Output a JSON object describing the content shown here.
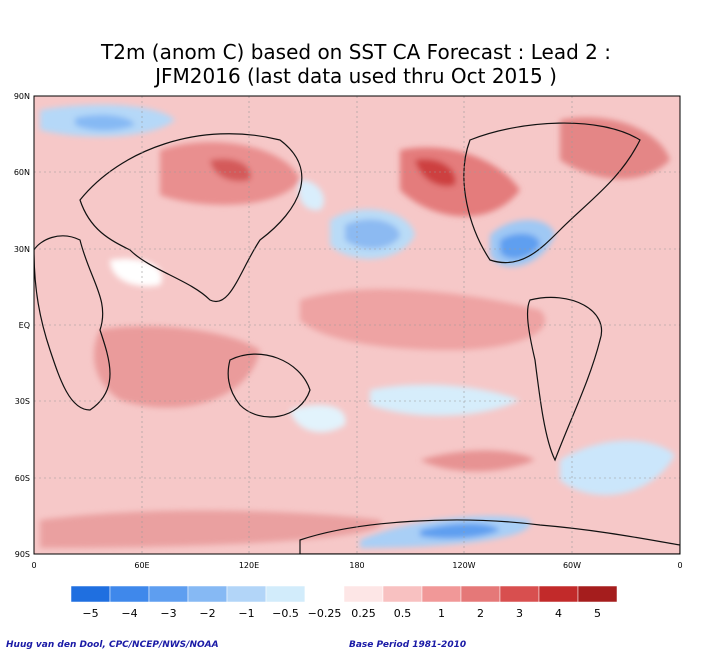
{
  "title": {
    "line1": "T2m (anom C) based on SST CA Forecast : Lead 2 :",
    "line2": "JFM2016 (last data used thru Oct 2015 )"
  },
  "map": {
    "lat_labels": [
      "90N",
      "60N",
      "30N",
      "EQ",
      "30S",
      "60S",
      "90S"
    ],
    "lon_labels": [
      "0",
      "60E",
      "120E",
      "180",
      "120W",
      "60W",
      "0"
    ],
    "background": "#ffffff",
    "grid_color": "#9a9a9a"
  },
  "colorbar": {
    "labels": [
      "−5",
      "−4",
      "−3",
      "−2",
      "−1",
      "−0.5",
      "−0.25",
      "0.25",
      "0.5",
      "1",
      "2",
      "3",
      "4",
      "5"
    ],
    "colors": [
      "#1f6fe0",
      "#3f88eb",
      "#5e9ef0",
      "#86b9f4",
      "#b2d5f8",
      "#d2ecfb",
      "#ffffff",
      "#fde6e6",
      "#f8c1c1",
      "#f19898",
      "#e57878",
      "#d84f4f",
      "#c22a2a",
      "#a51d1d"
    ]
  },
  "credits": {
    "left": "Huug van den Dool, CPC/NCEP/NWS/NOAA",
    "right": "Base Period 1981-2010"
  }
}
